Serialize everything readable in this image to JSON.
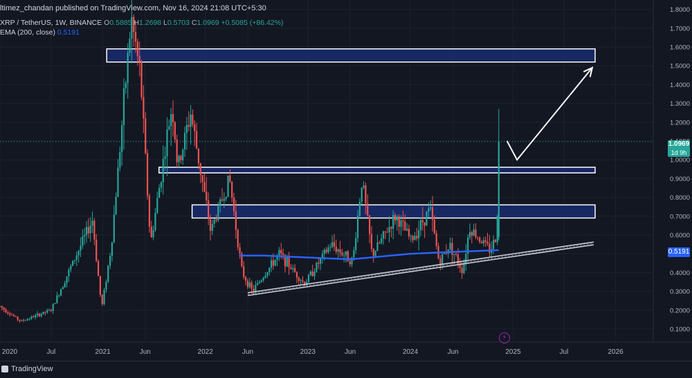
{
  "header": {
    "publisher": "ltimez_chandan published on TradingView.com, Nov 16, 2024 21:08 UTC+5:30",
    "symbol": "XRP / TetherUS, 1W, BINANCE",
    "open_label": "O",
    "open": "0.5885",
    "high_label": "H",
    "high": "1.2698",
    "low_label": "L",
    "low": "0.5703",
    "close_label": "C",
    "close": "1.0969",
    "change": "+0.5085 (+86.42%)",
    "ema_label": "EMA (200, close)",
    "ema_value": "0.5191"
  },
  "price_badge": {
    "value": "1.0969",
    "countdown": "1d 9h"
  },
  "ema_badge": {
    "value": "0.5191"
  },
  "footer": {
    "brand": "TradingView"
  },
  "icons": {
    "flash": "lightning-icon"
  },
  "colors": {
    "background": "#131722",
    "up": "#26a69a",
    "down": "#ef5350",
    "ema": "#2962ff",
    "zone_fill": "#1a2b6e",
    "zone_border": "#ffffff"
  },
  "chart_data": {
    "type": "candlestick",
    "symbol": "XRP / TetherUS",
    "interval": "1W",
    "exchange": "BINANCE",
    "y_scale": "linear",
    "ylim": [
      0.03,
      1.85
    ],
    "xlim": [
      "2020-01-01",
      "2026-05-15"
    ],
    "y_ticks": [
      "0.1000",
      "0.2000",
      "0.3000",
      "0.4000",
      "0.5000",
      "0.6000",
      "0.7000",
      "0.8000",
      "0.9000",
      "1.0000",
      "1.1000",
      "1.2000",
      "1.3000",
      "1.4000",
      "1.5000",
      "1.6000",
      "1.7000",
      "1.8000"
    ],
    "x_ticks": [
      {
        "label": "2020",
        "date": "2020-01-01"
      },
      {
        "label": "Jul",
        "date": "2020-07-01"
      },
      {
        "label": "2021",
        "date": "2021-01-01"
      },
      {
        "label": "Jun",
        "date": "2021-06-01"
      },
      {
        "label": "2022",
        "date": "2022-01-01"
      },
      {
        "label": "Jun",
        "date": "2022-06-01"
      },
      {
        "label": "2023",
        "date": "2023-01-01"
      },
      {
        "label": "Jun",
        "date": "2023-06-01"
      },
      {
        "label": "2024",
        "date": "2024-01-01"
      },
      {
        "label": "Jun",
        "date": "2024-06-01"
      },
      {
        "label": "2025",
        "date": "2025-01-01"
      },
      {
        "label": "Jul",
        "date": "2025-07-01"
      },
      {
        "label": "2026",
        "date": "2026-01-01"
      }
    ],
    "last_price": 1.0969,
    "price_line_grid": true,
    "key_points": [
      [
        "2020-01-01",
        0.22
      ],
      [
        "2020-03-15",
        0.14
      ],
      [
        "2020-07-01",
        0.2
      ],
      [
        "2020-11-25",
        0.68
      ],
      [
        "2020-12-28",
        0.21
      ],
      [
        "2021-02-01",
        0.55
      ],
      [
        "2021-04-12",
        1.75
      ],
      [
        "2021-05-15",
        1.45
      ],
      [
        "2021-06-20",
        0.55
      ],
      [
        "2021-09-05",
        1.3
      ],
      [
        "2021-09-25",
        0.95
      ],
      [
        "2021-11-10",
        1.25
      ],
      [
        "2022-01-20",
        0.62
      ],
      [
        "2022-03-28",
        0.9
      ],
      [
        "2022-05-12",
        0.4
      ],
      [
        "2022-06-18",
        0.3
      ],
      [
        "2022-09-22",
        0.5
      ],
      [
        "2022-12-20",
        0.34
      ],
      [
        "2023-03-25",
        0.55
      ],
      [
        "2023-06-10",
        0.46
      ],
      [
        "2023-07-13",
        0.9
      ],
      [
        "2023-08-18",
        0.49
      ],
      [
        "2023-11-10",
        0.7
      ],
      [
        "2024-01-05",
        0.57
      ],
      [
        "2024-03-11",
        0.74
      ],
      [
        "2024-04-13",
        0.45
      ],
      [
        "2024-05-20",
        0.55
      ],
      [
        "2024-07-05",
        0.41
      ],
      [
        "2024-07-30",
        0.64
      ],
      [
        "2024-10-10",
        0.52
      ],
      [
        "2024-11-04",
        0.59
      ],
      [
        "2024-11-11",
        1.1
      ]
    ],
    "last_candle": {
      "open": 0.5885,
      "high": 1.2698,
      "low": 0.5703,
      "close": 1.0969
    },
    "ema200": [
      [
        "2022-05-01",
        0.49
      ],
      [
        "2022-08-01",
        0.49
      ],
      [
        "2023-01-01",
        0.48
      ],
      [
        "2023-06-01",
        0.47
      ],
      [
        "2024-01-01",
        0.5
      ],
      [
        "2024-06-01",
        0.51
      ],
      [
        "2024-11-11",
        0.5191
      ]
    ],
    "zones": [
      {
        "y0": 1.52,
        "y1": 1.59,
        "x0": "2021-01-15",
        "x1": "2025-10-20"
      },
      {
        "y0": 0.93,
        "y1": 0.96,
        "x0": "2021-07-20",
        "x1": "2025-10-20"
      },
      {
        "y0": 0.69,
        "y1": 0.76,
        "x0": "2021-11-15",
        "x1": "2025-10-20"
      }
    ],
    "trendline": [
      [
        "2022-06-01",
        0.285
      ],
      [
        "2025-10-15",
        0.555
      ]
    ],
    "projection_arrow": [
      [
        "2024-12-10",
        1.1
      ],
      [
        "2025-01-15",
        1.0
      ],
      [
        "2025-10-10",
        1.49
      ]
    ]
  }
}
